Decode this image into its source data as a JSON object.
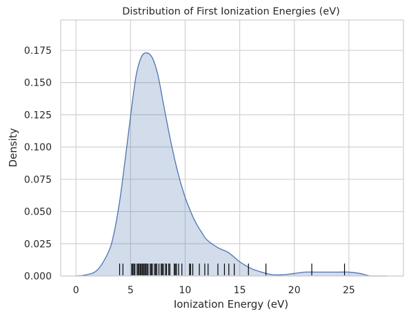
{
  "chart_data": {
    "type": "area",
    "title": "Distribution of First Ionization Energies (eV)",
    "xlabel": "Ionization Energy (eV)",
    "ylabel": "Density",
    "xlim": [
      -1.4,
      30.0
    ],
    "ylim": [
      0,
      0.1985
    ],
    "x_ticks": [
      0,
      5,
      10,
      15,
      20,
      25
    ],
    "y_ticks": [
      0.0,
      0.025,
      0.05,
      0.075,
      0.1,
      0.125,
      0.15,
      0.175
    ],
    "x_tick_labels": [
      "0",
      "5",
      "10",
      "15",
      "20",
      "25"
    ],
    "y_tick_labels": [
      "0.000",
      "0.025",
      "0.050",
      "0.075",
      "0.100",
      "0.125",
      "0.150",
      "0.175"
    ],
    "grid": true,
    "series": [
      {
        "kind": "kde",
        "color": "#4c72b0",
        "fill_color": "#4c72b0",
        "fill_opacity": 0.25,
        "x": [
          0,
          1,
          2,
          3,
          3.5,
          4,
          4.5,
          5,
          5.5,
          6,
          6.5,
          7,
          7.5,
          8,
          8.5,
          9,
          9.5,
          10,
          10.5,
          11,
          11.5,
          12,
          13,
          14,
          15,
          16,
          17,
          18,
          19,
          20,
          21,
          22,
          23,
          24,
          25,
          26,
          27,
          28.5
        ],
        "y": [
          0.0,
          0.001,
          0.005,
          0.019,
          0.034,
          0.058,
          0.09,
          0.124,
          0.155,
          0.17,
          0.173,
          0.169,
          0.156,
          0.134,
          0.112,
          0.092,
          0.075,
          0.061,
          0.05,
          0.041,
          0.034,
          0.028,
          0.022,
          0.018,
          0.011,
          0.006,
          0.003,
          0.001,
          0.001,
          0.002,
          0.003,
          0.003,
          0.003,
          0.003,
          0.003,
          0.002,
          0.0,
          0.0
        ]
      },
      {
        "kind": "rug",
        "color": "#000000",
        "values": [
          4.0,
          4.3,
          5.1,
          5.2,
          5.3,
          5.4,
          5.6,
          5.7,
          5.8,
          5.9,
          6.0,
          6.1,
          6.2,
          6.3,
          6.4,
          6.5,
          6.6,
          6.8,
          6.9,
          7.0,
          7.2,
          7.3,
          7.4,
          7.6,
          7.8,
          7.9,
          8.0,
          8.2,
          8.3,
          8.5,
          8.6,
          9.0,
          9.1,
          9.2,
          9.4,
          9.7,
          10.4,
          10.5,
          10.7,
          11.3,
          11.8,
          12.1,
          13.0,
          13.6,
          14.0,
          14.5,
          15.8,
          17.4,
          21.6,
          24.6
        ]
      }
    ]
  }
}
